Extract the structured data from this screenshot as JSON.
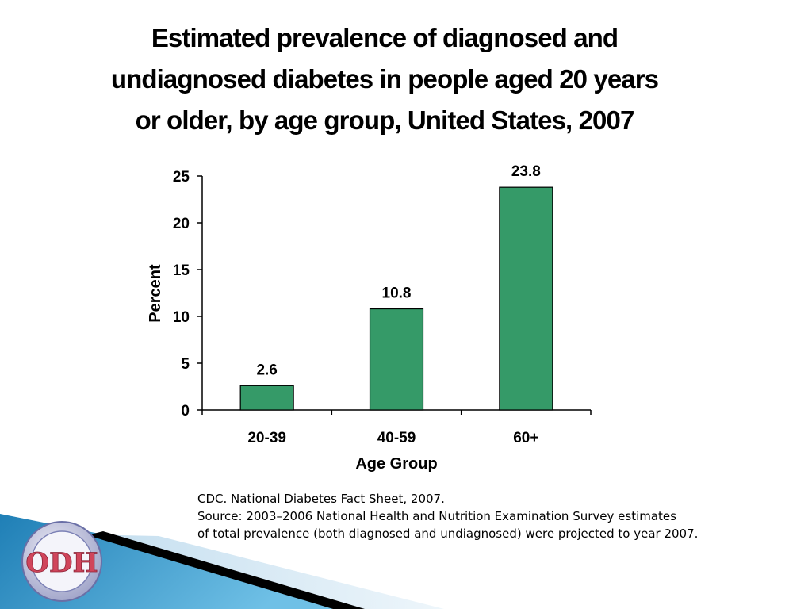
{
  "title": {
    "lines": [
      "Estimated prevalence of diagnosed and",
      "undiagnosed diabetes in people aged 20 years",
      "or older, by age group, United States, 2007"
    ]
  },
  "source": {
    "lines": [
      "CDC. National Diabetes Fact Sheet, 2007.",
      "Source: 2003–2006 National Health and Nutrition Examination Survey estimates",
      "of total prevalence (both diagnosed and undiagnosed) were projected to year 2007."
    ]
  },
  "logo": {
    "text": "ODH",
    "icon": "odh-seal-logo"
  },
  "colors": {
    "bar": "#359a68",
    "bar_outline": "#000000",
    "axis": "#000000",
    "banner_blue": "#2a8fc4",
    "banner_light": "#cfe3f1"
  },
  "chart_data": {
    "type": "bar",
    "title": "Estimated prevalence of diagnosed and undiagnosed diabetes in people aged 20 years or older, by age group, United States, 2007",
    "categories": [
      "20-39",
      "40-59",
      "60+"
    ],
    "values": [
      2.6,
      10.8,
      23.8
    ],
    "data_labels": [
      "2.6",
      "10.8",
      "23.8"
    ],
    "xlabel": "Age Group",
    "ylabel": "Percent",
    "ylim": [
      0,
      25
    ],
    "yticks": [
      0,
      5,
      10,
      15,
      20,
      25
    ],
    "ytick_labels": [
      "0",
      "5",
      "10",
      "15",
      "20",
      "25"
    ],
    "grid": false,
    "legend": "none"
  }
}
